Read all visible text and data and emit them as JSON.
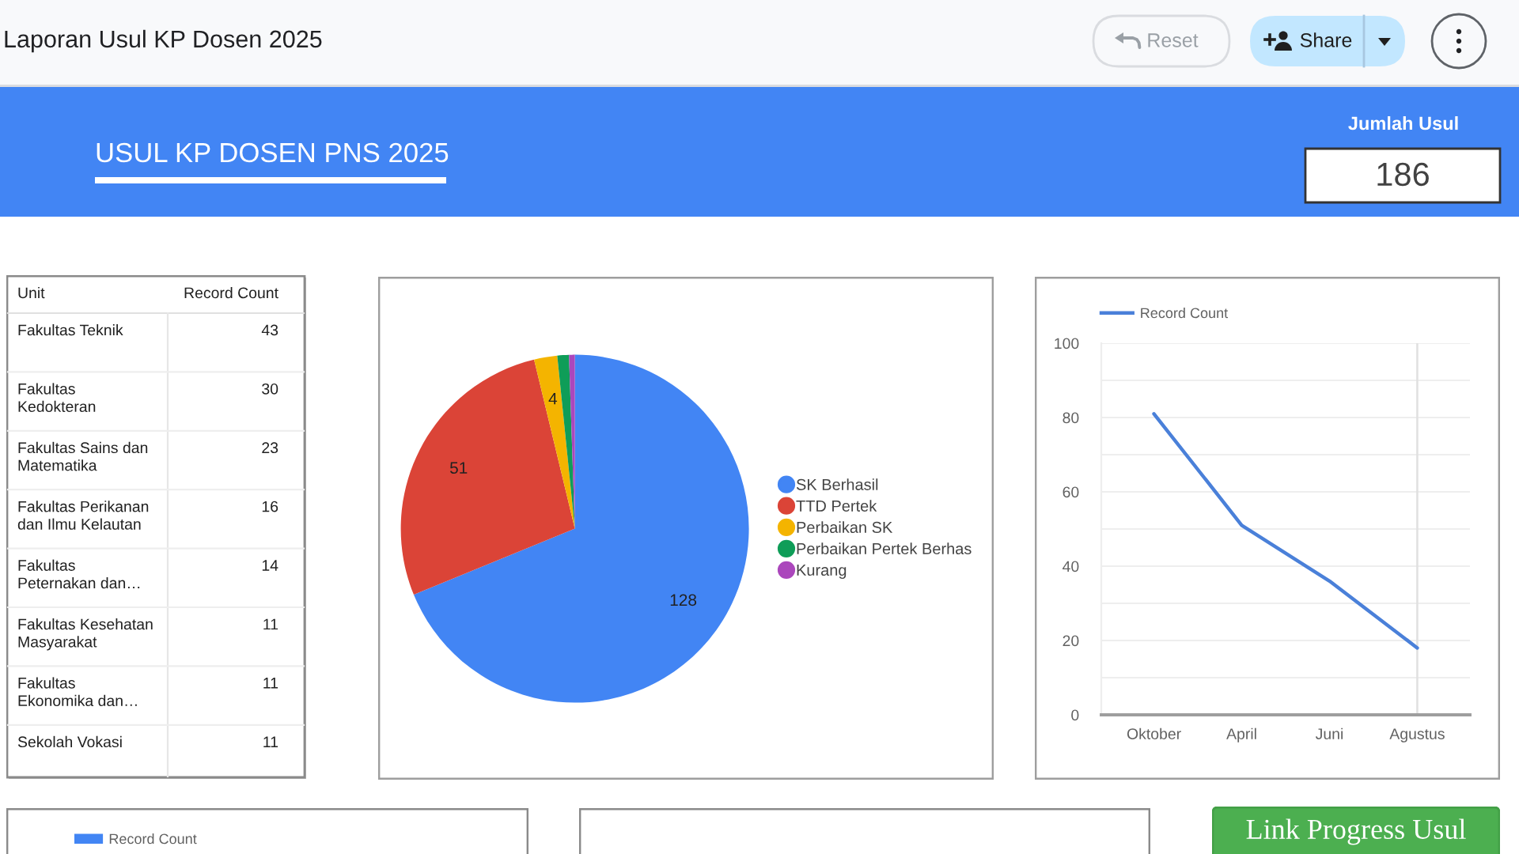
{
  "chart_data": [
    {
      "type": "other",
      "title": "Laporan Usul KP Dosen 2025",
      "annotations": [
        "Reset",
        "Share"
      ]
    },
    {
      "type": "other",
      "title": "USUL KP DOSEN PNS 2025"
    },
    {
      "type": "other",
      "title": "Jumlah Usul",
      "values": [
        186
      ],
      "data_labels": true
    },
    {
      "type": "other",
      "xlabel": "Unit",
      "ylabel": "Record Count",
      "categories": [
        "Fakultas Teknik",
        "Fakultas Kedokteran",
        "Fakultas Sains dan Matematika",
        "Fakultas Perikanan dan Ilmu Kelautan",
        "Fakultas Peternakan dan…",
        "Fakultas Kesehatan Masyarakat",
        "Fakultas Ekonomika dan…",
        "Sekolah Vokasi"
      ],
      "values": [
        43,
        30,
        23,
        16,
        14,
        11,
        11,
        11
      ],
      "data_labels": true
    },
    {
      "type": "pie",
      "categories": [
        "SK Berhasil",
        "TTD Pertek",
        "Perbaikan SK",
        "Perbaikan Pertek Berhas",
        "Kurang"
      ],
      "values": [
        128,
        51,
        4,
        2,
        1
      ],
      "colors": [
        "#4285f4",
        "#db4437",
        "#f4b400",
        "#0f9d58",
        "#ab47bc"
      ],
      "value_labels": [
        "128",
        "51",
        "4",
        null,
        null
      ],
      "legend": "right"
    },
    {
      "type": "line",
      "categories": [
        "Oktober",
        "April",
        "Juni",
        "Agustus"
      ],
      "series": [
        {
          "name": "Record Count",
          "color": "#4a80d9",
          "values": [
            81,
            51,
            36,
            18
          ]
        }
      ],
      "ylim": [
        0,
        100
      ],
      "yticks": [
        0,
        {
          "value": 10,
          "label": null
        },
        20,
        {
          "value": 30,
          "label": null
        },
        40,
        {
          "value": 50,
          "label": null
        },
        60,
        {
          "value": 70,
          "label": null
        },
        80,
        {
          "value": 90,
          "label": null
        },
        100
      ],
      "grid": "y",
      "legend": "top left",
      "ref_lines": [
        {
          "axis": "x",
          "value": "Agustus",
          "color": "#e0e0e0"
        }
      ]
    },
    {
      "type": "other",
      "series": [
        {
          "name": "Record Count",
          "color": "#4285f4"
        }
      ],
      "legend": "top left"
    },
    {
      "type": "other"
    },
    {
      "type": "other",
      "title": "Link Progress Usul"
    }
  ]
}
